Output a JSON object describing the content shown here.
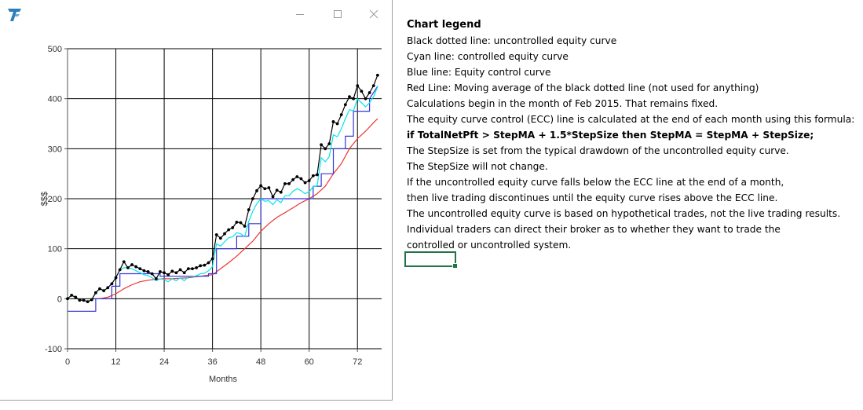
{
  "window": {
    "logo_icon": "app-logo-icon",
    "buttons": [
      "minimize-icon",
      "maximize-icon",
      "close-icon"
    ]
  },
  "legend": {
    "title": "Chart legend",
    "lines": [
      {
        "text": "Black dotted line: uncontrolled equity curve",
        "bold": false
      },
      {
        "text": "Cyan line: controlled equity curve",
        "bold": false
      },
      {
        "text": "Blue line: Equity control curve",
        "bold": false
      },
      {
        "text": "Red Line: Moving average of the black dotted line (not used for anything)",
        "bold": false
      },
      {
        "text": "Calculations begin in the month of Feb 2015. That remains fixed.",
        "bold": false
      },
      {
        "text": "The equity curve control (ECC) line is calculated at the end of each month using this formula:",
        "bold": false
      },
      {
        "text": "if TotalNetPft > StepMA + 1.5*StepSize then StepMA = StepMA + StepSize;",
        "bold": true
      },
      {
        "text": "The StepSize is set from the typical drawdown of the uncontrolled equity curve.",
        "bold": false
      },
      {
        "text": "The StepSize will not change.",
        "bold": false
      },
      {
        "text": "If the uncontrolled equity curve falls below the ECC line at the end of a month,",
        "bold": false
      },
      {
        "text": "then live trading discontinues until the equity curve rises above the ECC line.",
        "bold": false
      },
      {
        "text": "The uncontrolled equity curve is based on hypothetical trades, not the live trading results.",
        "bold": false
      },
      {
        "text": "Individual traders can direct their broker as to whether they want to trade the",
        "bold": false
      },
      {
        "text": "controlled or uncontrolled system.",
        "bold": false
      }
    ]
  },
  "chart_data": {
    "type": "line",
    "xlabel": "Months",
    "ylabel": "$$$",
    "xlim": [
      0,
      78
    ],
    "ylim": [
      -100,
      500
    ],
    "xticks": [
      0,
      12,
      24,
      36,
      48,
      60,
      72
    ],
    "yticks": [
      -100,
      0,
      100,
      200,
      300,
      400,
      500
    ],
    "grid": true,
    "series": [
      {
        "key": "uncontrolled",
        "color": "#000000",
        "markers": true,
        "x": [
          0,
          1,
          2,
          3,
          4,
          5,
          6,
          7,
          8,
          9,
          10,
          11,
          12,
          13,
          14,
          15,
          16,
          17,
          18,
          19,
          20,
          21,
          22,
          23,
          24,
          25,
          26,
          27,
          28,
          29,
          30,
          31,
          32,
          33,
          34,
          35,
          36,
          37,
          38,
          39,
          40,
          41,
          42,
          43,
          44,
          45,
          46,
          47,
          48,
          49,
          50,
          51,
          52,
          53,
          54,
          55,
          56,
          57,
          58,
          59,
          60,
          61,
          62,
          63,
          64,
          65,
          66,
          67,
          68,
          69,
          70,
          71,
          72,
          73,
          74,
          75,
          76,
          77
        ],
        "y": [
          0,
          7,
          3,
          -3,
          -3,
          -6,
          -2,
          12,
          20,
          16,
          22,
          30,
          42,
          58,
          74,
          62,
          68,
          64,
          60,
          56,
          54,
          50,
          40,
          54,
          52,
          48,
          55,
          52,
          58,
          52,
          60,
          60,
          62,
          66,
          67,
          72,
          80,
          128,
          121,
          130,
          138,
          142,
          153,
          152,
          145,
          178,
          200,
          216,
          226,
          220,
          222,
          204,
          217,
          213,
          230,
          230,
          238,
          244,
          240,
          232,
          236,
          246,
          248,
          308,
          300,
          310,
          354,
          350,
          368,
          388,
          404,
          400,
          426,
          415,
          400,
          412,
          426,
          447
        ]
      },
      {
        "key": "controlled",
        "color": "#00e5ee",
        "markers": false,
        "x": [
          0,
          1,
          2,
          3,
          4,
          5,
          6,
          7,
          8,
          9,
          10,
          11,
          12,
          13,
          14,
          15,
          16,
          17,
          18,
          19,
          20,
          21,
          22,
          23,
          24,
          25,
          26,
          27,
          28,
          29,
          30,
          31,
          32,
          33,
          34,
          35,
          36,
          37,
          38,
          39,
          40,
          41,
          42,
          43,
          44,
          45,
          46,
          47,
          48,
          49,
          50,
          51,
          52,
          53,
          54,
          55,
          56,
          57,
          58,
          59,
          60,
          61,
          62,
          63,
          64,
          65,
          66,
          67,
          68,
          69,
          70,
          71,
          72,
          73,
          74,
          75,
          76,
          77
        ],
        "y": [
          0,
          7,
          3,
          -3,
          -3,
          -6,
          -2,
          12,
          20,
          16,
          22,
          30,
          42,
          58,
          62,
          62,
          60,
          56,
          52,
          48,
          46,
          42,
          36,
          40,
          38,
          34,
          40,
          36,
          42,
          36,
          44,
          44,
          46,
          50,
          51,
          56,
          64,
          110,
          105,
          114,
          122,
          124,
          132,
          130,
          124,
          155,
          175,
          190,
          200,
          195,
          196,
          188,
          198,
          192,
          206,
          206,
          215,
          220,
          216,
          210,
          214,
          224,
          226,
          282,
          274,
          284,
          328,
          324,
          340,
          360,
          378,
          376,
          400,
          392,
          384,
          392,
          404,
          424
        ]
      },
      {
        "key": "ecc",
        "color": "#3333dd",
        "markers": false,
        "x": [
          0,
          7,
          7,
          11,
          11,
          13,
          13,
          23,
          23,
          35,
          35,
          37,
          37,
          42,
          42,
          45,
          45,
          48,
          48,
          54,
          54,
          58,
          58,
          61,
          61,
          63,
          63,
          66,
          66,
          69,
          69,
          71,
          71,
          75,
          75,
          77
        ],
        "y": [
          -25,
          -25,
          0,
          0,
          25,
          25,
          50,
          50,
          45,
          45,
          50,
          50,
          100,
          100,
          125,
          125,
          150,
          150,
          200,
          200,
          200,
          200,
          200,
          200,
          225,
          225,
          250,
          250,
          300,
          300,
          325,
          325,
          375,
          375,
          400,
          425
        ]
      },
      {
        "key": "moving-average",
        "color": "#ee3333",
        "markers": false,
        "x": [
          8,
          10,
          12,
          14,
          16,
          18,
          20,
          22,
          24,
          26,
          28,
          30,
          32,
          34,
          36,
          38,
          40,
          42,
          44,
          46,
          48,
          50,
          52,
          54,
          56,
          58,
          60,
          62,
          64,
          66,
          68,
          70,
          72,
          74,
          76,
          77
        ],
        "y": [
          0,
          3,
          10,
          20,
          28,
          34,
          37,
          39,
          40,
          40,
          41,
          42,
          44,
          46,
          48,
          60,
          72,
          85,
          100,
          115,
          135,
          150,
          163,
          172,
          182,
          192,
          200,
          210,
          225,
          250,
          270,
          300,
          320,
          335,
          352,
          360
        ]
      }
    ]
  }
}
